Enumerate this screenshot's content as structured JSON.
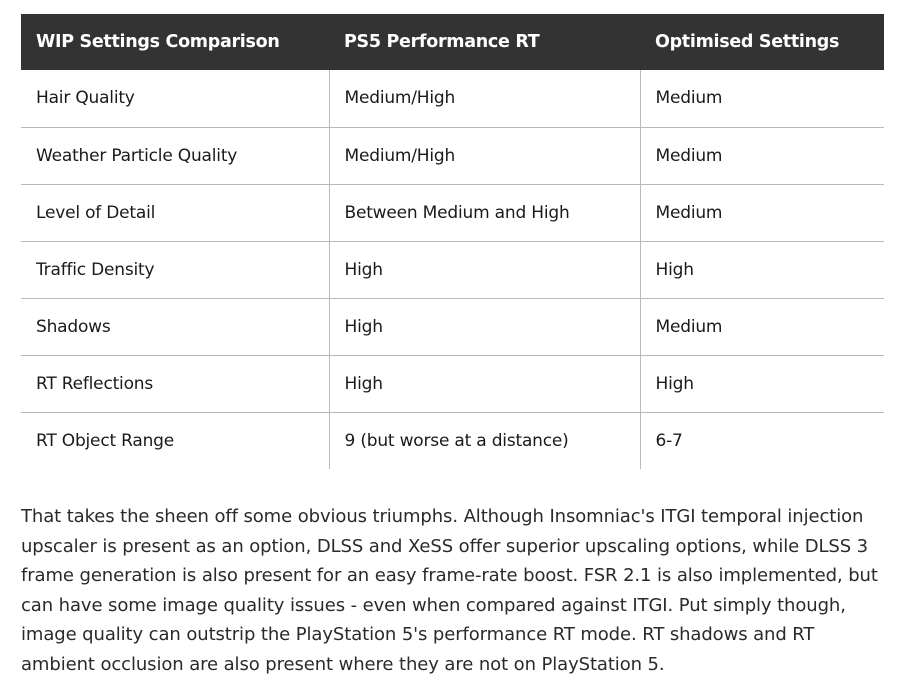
{
  "table": {
    "headers": [
      "WIP Settings Comparison",
      "PS5 Performance RT",
      "Optimised Settings"
    ],
    "rows": [
      [
        "Hair Quality",
        "Medium/High",
        "Medium"
      ],
      [
        "Weather Particle Quality",
        "Medium/High",
        "Medium"
      ],
      [
        "Level of Detail",
        "Between Medium and High",
        "Medium"
      ],
      [
        "Traffic Density",
        "High",
        "High"
      ],
      [
        "Shadows",
        "High",
        "Medium"
      ],
      [
        "RT Reflections",
        "High",
        "High"
      ],
      [
        "RT Object Range",
        "9 (but worse at a distance)",
        "6-7"
      ]
    ]
  },
  "article": {
    "paragraph": "That takes the sheen off some obvious triumphs. Although Insomniac's ITGI temporal injection upscaler is present as an option, DLSS and XeSS offer superior upscaling options, while DLSS 3 frame generation is also present for an easy frame-rate boost. FSR 2.1 is also implemented, but can have some image quality issues - even when compared against ITGI. Put simply though, image quality can outstrip the PlayStation 5's performance RT mode. RT shadows and RT ambient occlusion are also present where they are not on PlayStation 5."
  },
  "colors": {
    "header_bg": "#333333",
    "header_text": "#ffffff",
    "grid_line": "#b9b9c4",
    "body_text": "#1a1a1a"
  }
}
